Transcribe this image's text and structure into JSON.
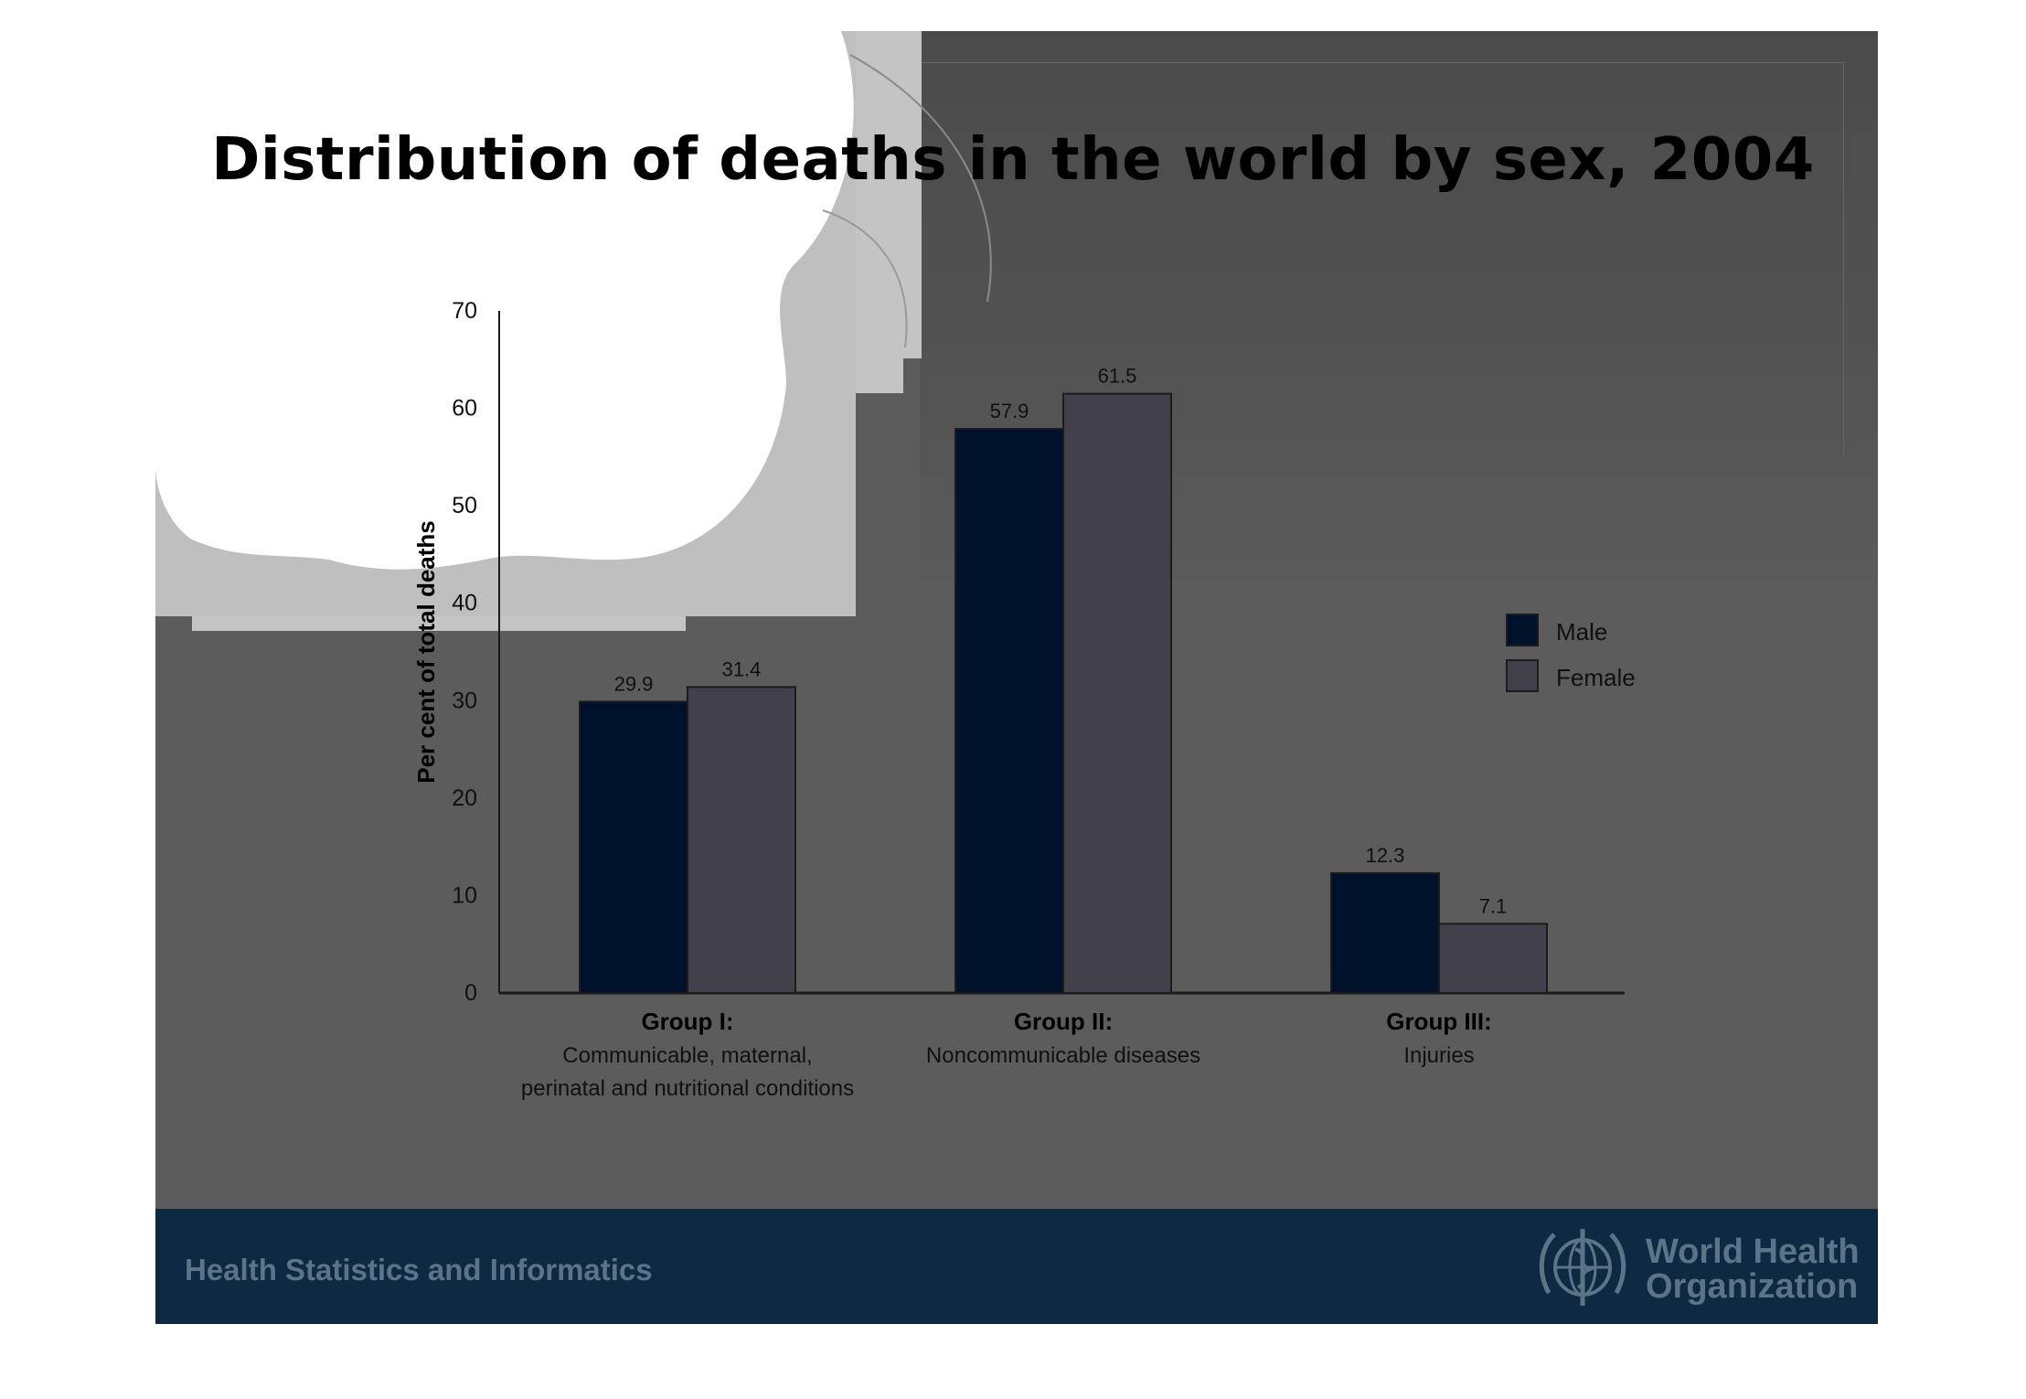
{
  "title": "Distribution of deaths in the world by sex, 2004",
  "chart_data": {
    "type": "bar",
    "title": "Distribution of deaths in the world by sex, 2004",
    "ylabel": "Per cent of total deaths",
    "xlabel": "",
    "ylim": [
      0,
      70
    ],
    "yticks": [
      0,
      10,
      20,
      30,
      40,
      50,
      60,
      70
    ],
    "categories": [
      {
        "group": "Group I:",
        "desc": [
          "Communicable, maternal,",
          "perinatal and nutritional conditions"
        ]
      },
      {
        "group": "Group II:",
        "desc": [
          "Noncommunicable diseases"
        ]
      },
      {
        "group": "Group III:",
        "desc": [
          "Injuries"
        ]
      }
    ],
    "series": [
      {
        "name": "Male",
        "values": [
          29.9,
          57.9,
          12.3
        ],
        "color": "#00112c"
      },
      {
        "name": "Female",
        "values": [
          31.4,
          61.5,
          7.1
        ],
        "color": "#42414b"
      }
    ],
    "data_labels": [
      [
        "29.9",
        "57.9",
        "12.3"
      ],
      [
        "31.4",
        "61.5",
        "7.1"
      ]
    ],
    "legend_position": "right",
    "grid": false
  },
  "footer": {
    "left_text": "Health Statistics and Informatics",
    "org_name_line1": "World Health",
    "org_name_line2": "Organization",
    "emblem_icon": "who-emblem-icon"
  }
}
